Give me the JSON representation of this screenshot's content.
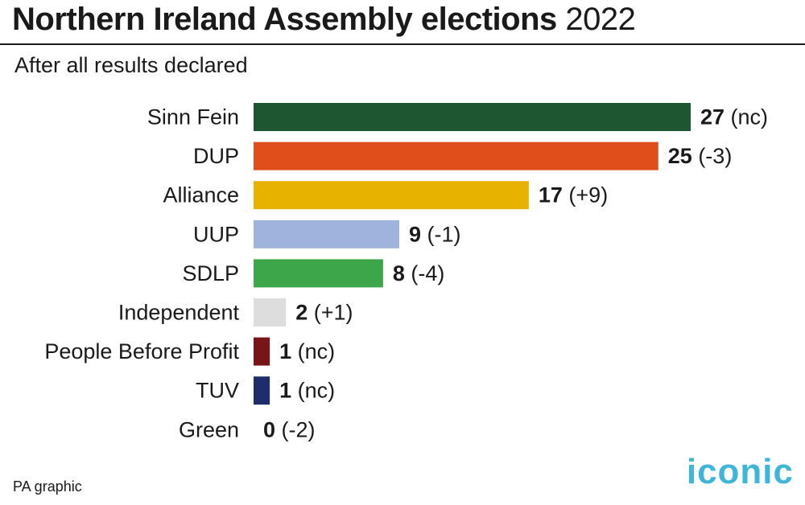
{
  "header": {
    "title_main": "Northern Ireland Assembly elections",
    "title_year": "2022",
    "subtitle": "After all results declared"
  },
  "footer": {
    "credit": "PA graphic",
    "logo": "iconic"
  },
  "chart_data": {
    "type": "bar",
    "orientation": "horizontal",
    "categories": [
      "Sinn Fein",
      "DUP",
      "Alliance",
      "UUP",
      "SDLP",
      "Independent",
      "People Before Profit",
      "TUV",
      "Green"
    ],
    "values": [
      27,
      25,
      17,
      9,
      8,
      2,
      1,
      1,
      0
    ],
    "changes": [
      "(nc)",
      "(-3)",
      "(+9)",
      "(-1)",
      "(-4)",
      "(+1)",
      "(nc)",
      "(nc)",
      "(-2)"
    ],
    "colors": [
      "#1e5631",
      "#e04e1b",
      "#e8b200",
      "#9fb3dc",
      "#3ea64a",
      "#dddddd",
      "#7a1416",
      "#1f2d6b",
      "#2f9c48"
    ],
    "xlim": [
      0,
      27
    ],
    "grid": false,
    "legend": "none"
  }
}
